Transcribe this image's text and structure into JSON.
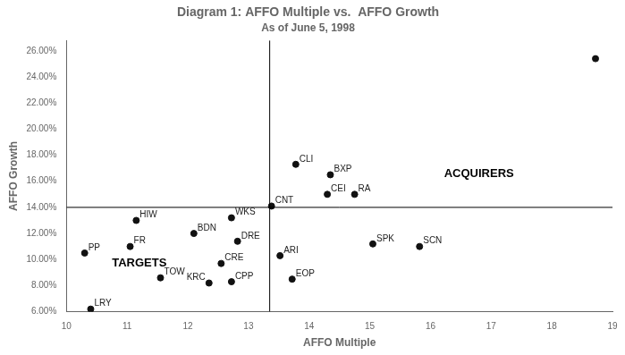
{
  "chart_data": {
    "type": "scatter",
    "title": "Diagram 1: AFFO Multiple vs.  AFFO Growth",
    "subtitle": "As of June 5, 1998",
    "xlabel": "AFFO Multiple",
    "ylabel": "AFFO Growth",
    "xlim": [
      10,
      19
    ],
    "ylim": [
      0.06,
      0.268
    ],
    "xticks": [
      10,
      11,
      12,
      13,
      14,
      15,
      16,
      17,
      18,
      19
    ],
    "yticks": [
      {
        "value": 0.06,
        "label": "6.00%"
      },
      {
        "value": 0.08,
        "label": "8.00%"
      },
      {
        "value": 0.1,
        "label": "10.00%"
      },
      {
        "value": 0.12,
        "label": "12.00%"
      },
      {
        "value": 0.14,
        "label": "14.00%"
      },
      {
        "value": 0.16,
        "label": "16.00%"
      },
      {
        "value": 0.18,
        "label": "18.00%"
      },
      {
        "value": 0.2,
        "label": "20.00%"
      },
      {
        "value": 0.22,
        "label": "22.00%"
      },
      {
        "value": 0.24,
        "label": "24.00%"
      },
      {
        "value": 0.26,
        "label": "26.00%"
      }
    ],
    "x": [
      10.3,
      10.4,
      11.05,
      11.15,
      11.55,
      12.1,
      12.35,
      12.55,
      12.72,
      12.72,
      12.82,
      13.38,
      13.52,
      13.72,
      13.78,
      14.35,
      14.3,
      14.75,
      15.05,
      15.82,
      18.72
    ],
    "values": [
      0.105,
      0.062,
      0.11,
      0.13,
      0.086,
      0.12,
      0.082,
      0.097,
      0.083,
      0.132,
      0.114,
      0.141,
      0.103,
      0.085,
      0.173,
      0.165,
      0.15,
      0.15,
      0.112,
      0.11,
      0.254
    ],
    "point_labels": [
      "PP",
      "LRY",
      "FR",
      "HIW",
      "TOW",
      "BDN",
      "KRC",
      "CRE",
      "CPP",
      "WKS",
      "DRE",
      "CNT",
      "ARI",
      "EOP",
      "CLI",
      "BXP",
      "CEI",
      "RA",
      "SPK",
      "SCN",
      null
    ],
    "color": "#111111",
    "vline": 13.35,
    "hline": 0.14,
    "annotations": [
      {
        "text": "ACQUIRERS",
        "x": 16.8,
        "y": 0.166
      },
      {
        "text": "TARGETS",
        "x": 11.2,
        "y": 0.097
      }
    ],
    "grid": false
  }
}
